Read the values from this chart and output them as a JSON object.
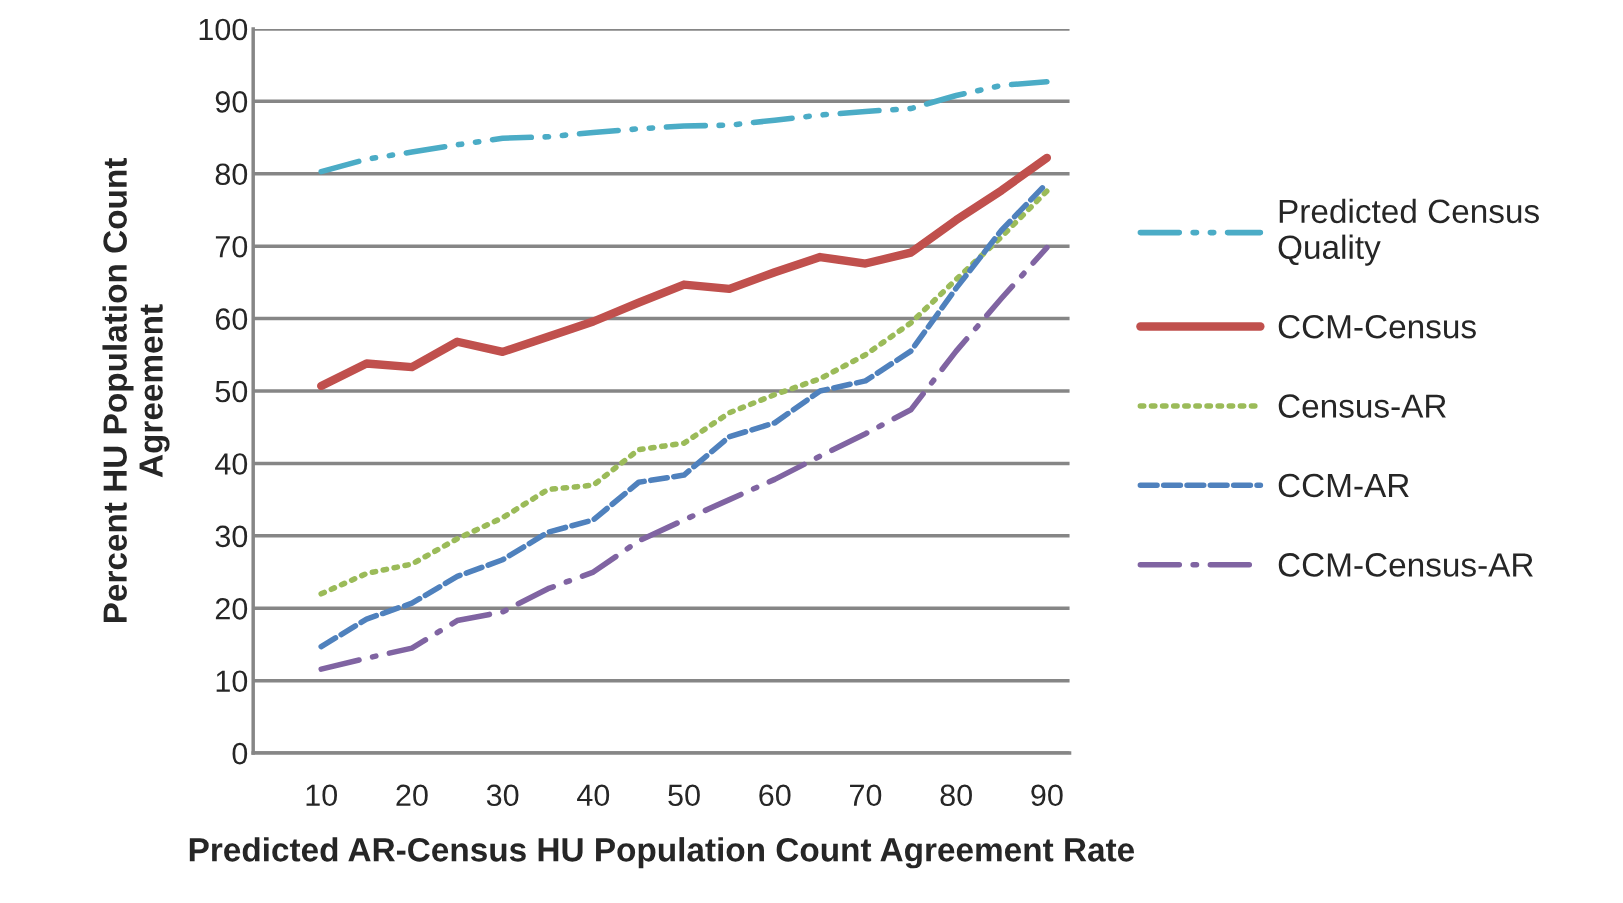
{
  "chart_data": {
    "type": "line",
    "xlabel": "Predicted AR-Census HU Population Count Agreement Rate",
    "ylabel": "Percent HU Population Count\nAgreement",
    "categories": [
      null,
      "10",
      null,
      "20",
      null,
      "30",
      null,
      "40",
      null,
      "50",
      null,
      "60",
      null,
      "70",
      null,
      "80",
      null,
      "90"
    ],
    "ylim": [
      0,
      100
    ],
    "yticks": [
      0,
      10,
      20,
      30,
      40,
      50,
      60,
      70,
      80,
      90,
      100
    ],
    "grid": "y",
    "legend": "right",
    "marker": "none",
    "series": [
      {
        "name": "Predicted Census\nQuality",
        "color": "#4bacc6",
        "line_style": "dashdotdot",
        "values": [
          null,
          80.3,
          82.0,
          83.0,
          84.0,
          84.9,
          85.1,
          85.7,
          86.2,
          86.6,
          86.7,
          87.4,
          88.1,
          88.6,
          89.0,
          90.8,
          92.2,
          92.7
        ]
      },
      {
        "name": "CCM-Census",
        "color": "#c0504d",
        "line_style": "solid",
        "values": [
          null,
          50.7,
          53.8,
          53.3,
          56.8,
          55.4,
          57.5,
          59.6,
          62.2,
          64.7,
          64.1,
          66.4,
          68.5,
          67.6,
          69.1,
          73.6,
          77.7,
          82.2
        ]
      },
      {
        "name": "Census-AR",
        "color": "#9bbb59",
        "line_style": "dotted",
        "values": [
          null,
          22.0,
          24.8,
          26.1,
          29.6,
          32.5,
          36.4,
          37.0,
          41.9,
          42.8,
          47.0,
          49.5,
          51.7,
          55.0,
          59.4,
          65.4,
          71.3,
          77.6
        ]
      },
      {
        "name": "CCM-AR",
        "color": "#4f81bd",
        "line_style": "dashed",
        "values": [
          null,
          14.7,
          18.5,
          20.7,
          24.4,
          26.7,
          30.5,
          32.2,
          37.4,
          38.4,
          43.7,
          45.6,
          50.0,
          51.4,
          55.5,
          64.2,
          72.2,
          78.7
        ]
      },
      {
        "name": "CCM-Census-AR",
        "color": "#8064a2",
        "line_style": "dashdot",
        "values": [
          null,
          11.6,
          13.1,
          14.5,
          18.3,
          19.5,
          22.7,
          25.0,
          29.3,
          32.2,
          35.0,
          37.8,
          41.0,
          44.1,
          47.4,
          55.5,
          62.8,
          69.8
        ]
      }
    ]
  }
}
